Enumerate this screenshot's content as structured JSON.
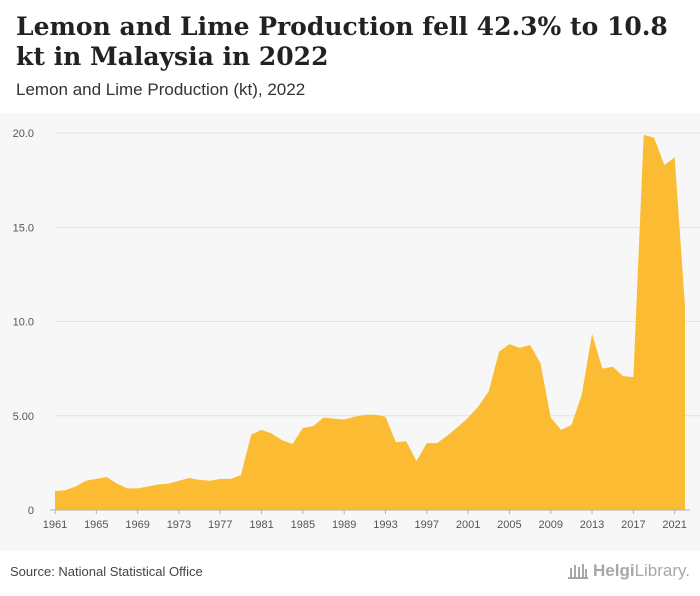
{
  "header": {
    "title": "Lemon and Lime Production fell 42.3% to 10.8 kt in Malaysia in 2022",
    "subtitle": "Lemon and Lime Production (kt), 2022"
  },
  "footer": {
    "source": "Source: National Statistical Office",
    "logo_brand": "Helgi",
    "logo_suffix": "Library."
  },
  "colors": {
    "area": "#fbbc33",
    "plot_bg": "#f7f7f7",
    "grid": "#e4e4e4"
  },
  "chart_data": {
    "type": "area",
    "title": "Lemon and Lime Production (kt), 2022",
    "xlabel": "",
    "ylabel": "",
    "xlim": [
      1961,
      2022
    ],
    "ylim": [
      0,
      20
    ],
    "grid": true,
    "legend": "none",
    "x_ticks": [
      1961,
      1965,
      1969,
      1973,
      1977,
      1981,
      1985,
      1989,
      1993,
      1997,
      2001,
      2005,
      2009,
      2013,
      2017,
      2021
    ],
    "y_ticks": [
      "0",
      "5.00",
      "10.0",
      "15.0",
      "20.0"
    ],
    "x": [
      1961,
      1962,
      1963,
      1964,
      1965,
      1966,
      1967,
      1968,
      1969,
      1970,
      1971,
      1972,
      1973,
      1974,
      1975,
      1976,
      1977,
      1978,
      1979,
      1980,
      1981,
      1982,
      1983,
      1984,
      1985,
      1986,
      1987,
      1988,
      1989,
      1990,
      1991,
      1992,
      1993,
      1994,
      1995,
      1996,
      1997,
      1998,
      1999,
      2000,
      2001,
      2002,
      2003,
      2004,
      2005,
      2006,
      2007,
      2008,
      2009,
      2010,
      2011,
      2012,
      2013,
      2014,
      2015,
      2016,
      2017,
      2018,
      2019,
      2020,
      2021,
      2022
    ],
    "series": [
      {
        "values": [
          1.0,
          1.05,
          1.25,
          1.55,
          1.65,
          1.75,
          1.4,
          1.15,
          1.15,
          1.25,
          1.35,
          1.4,
          1.55,
          1.7,
          1.6,
          1.55,
          1.65,
          1.65,
          1.85,
          4.0,
          4.25,
          4.05,
          3.7,
          3.5,
          4.35,
          4.45,
          4.9,
          4.85,
          4.8,
          4.95,
          5.05,
          5.05,
          4.95,
          3.6,
          3.65,
          2.6,
          3.55,
          3.55,
          3.95,
          4.4,
          4.9,
          5.5,
          6.3,
          8.4,
          8.8,
          8.6,
          8.75,
          7.8,
          4.9,
          4.25,
          4.5,
          6.1,
          9.35,
          7.5,
          7.6,
          7.1,
          7.05,
          19.9,
          19.75,
          18.3,
          18.7,
          10.8
        ]
      }
    ]
  }
}
